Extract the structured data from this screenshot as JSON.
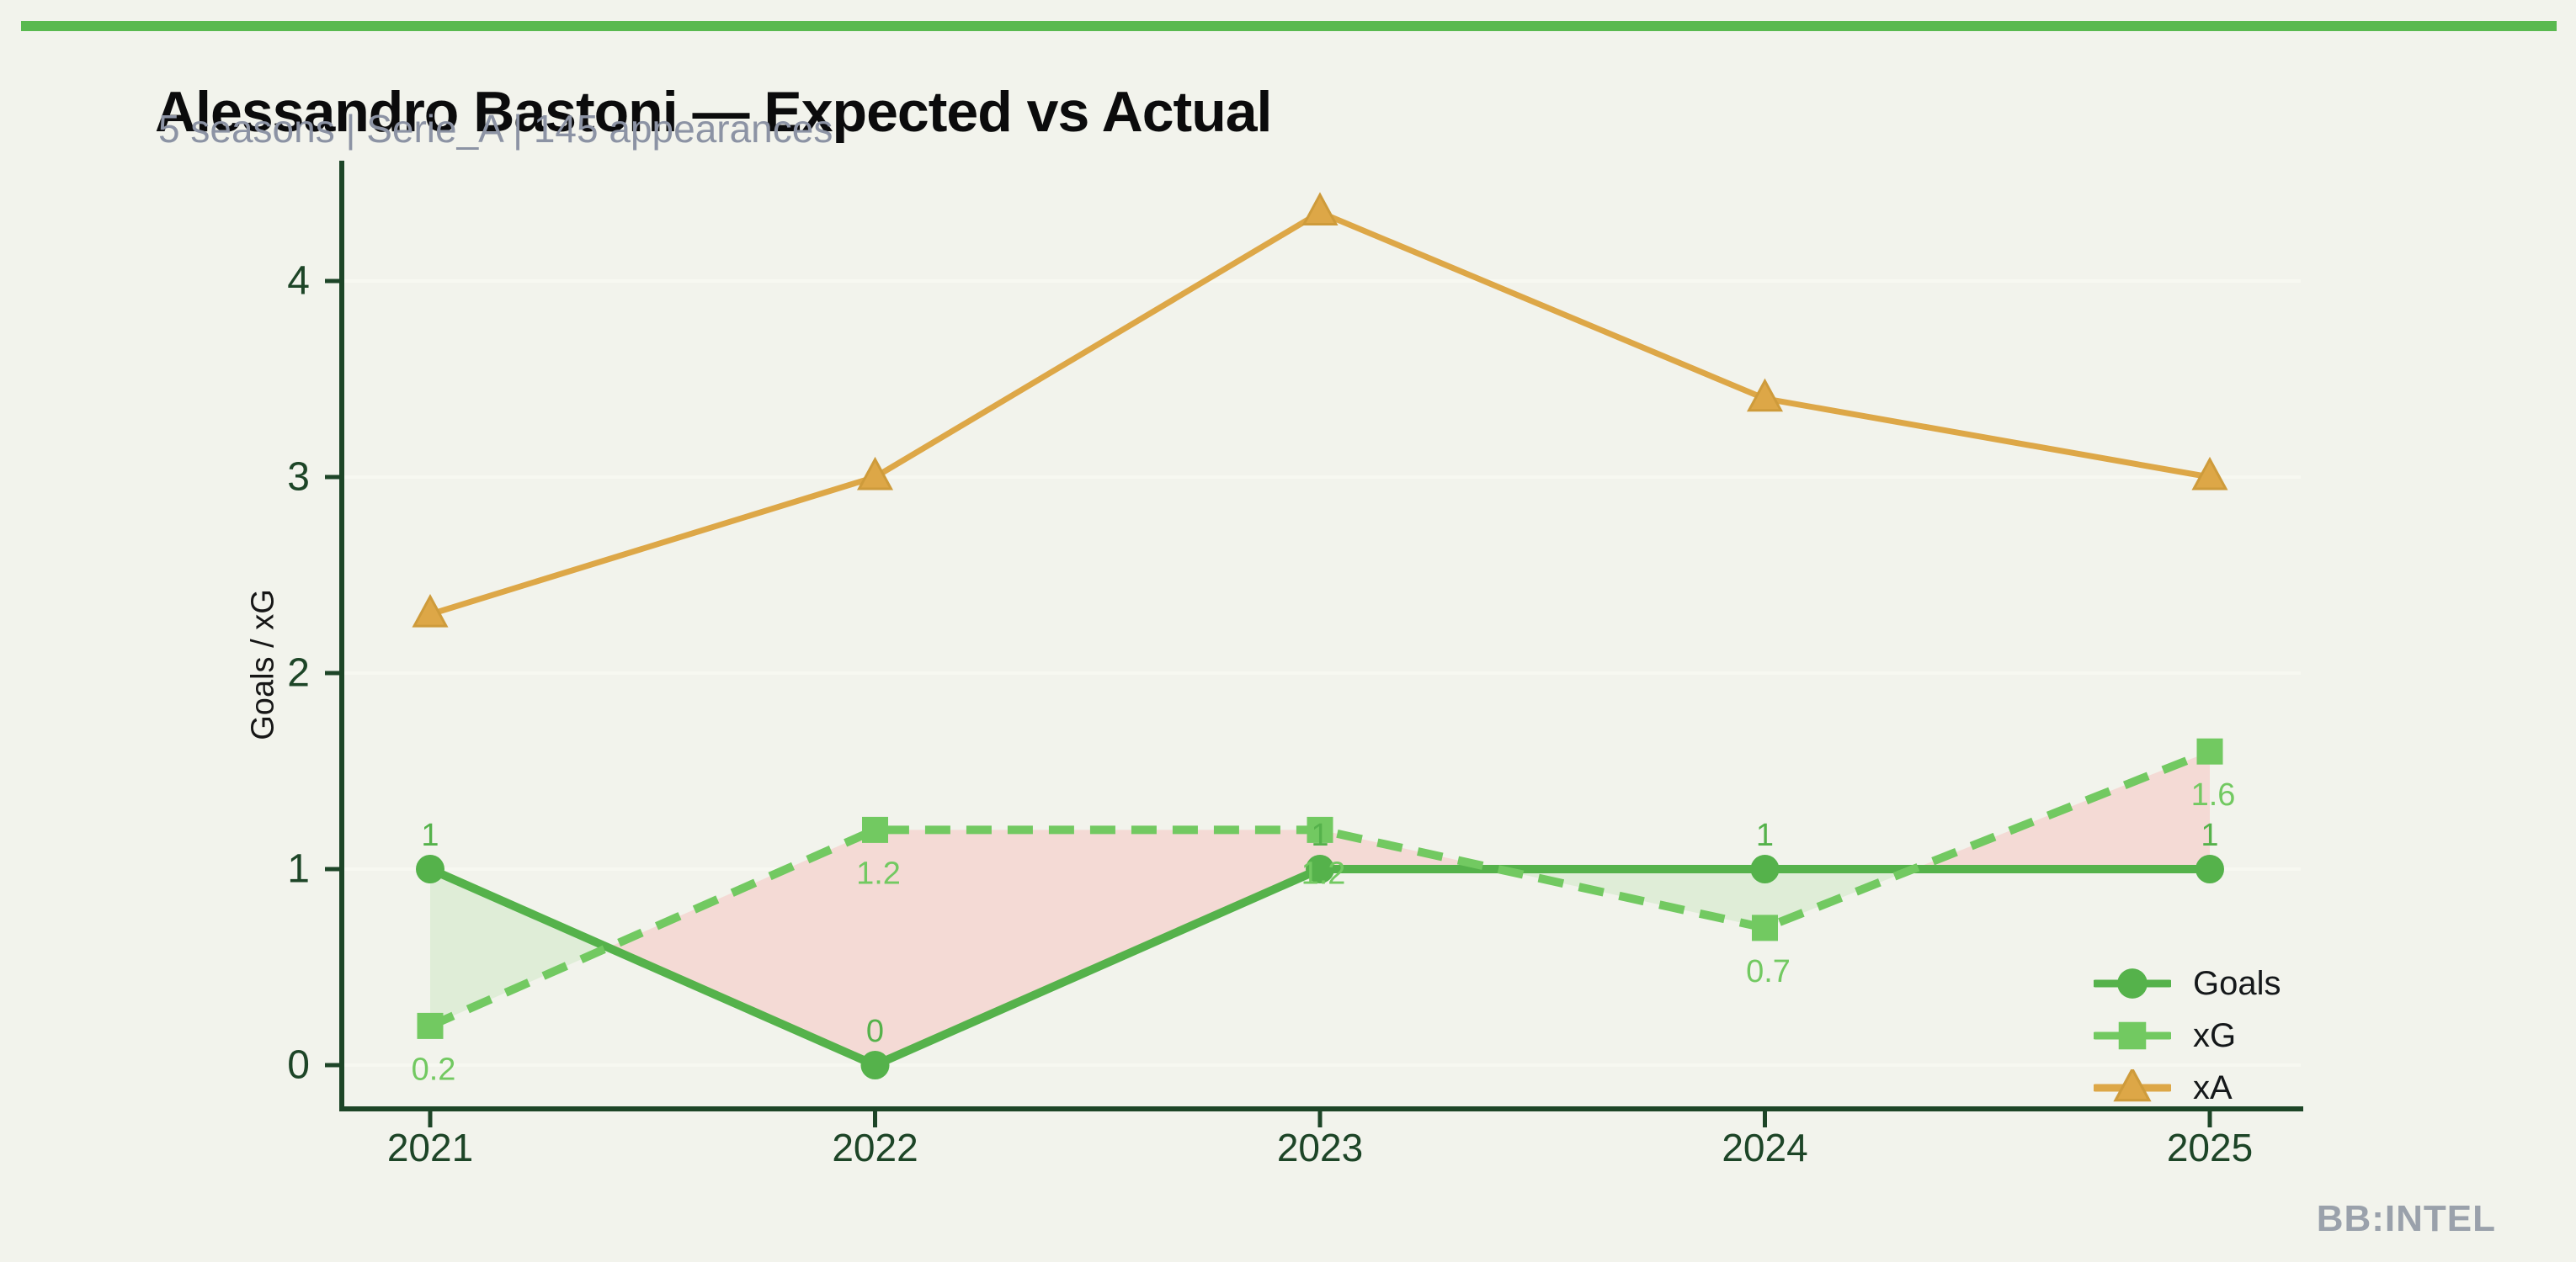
{
  "page": {
    "background": "#F2F3EC",
    "accent_bar_color": "#59B94F"
  },
  "header": {
    "title": "Alessandro Bastoni — Expected vs Actual",
    "subtitle": "5 seasons | Serie_A | 145 appearances",
    "subtitle_color": "#8C93A4"
  },
  "watermark": {
    "text": "BB:INTEL",
    "color": "#9AA1AB"
  },
  "chart_data": {
    "type": "line",
    "title": "Alessandro Bastoni — Expected vs Actual",
    "categories": [
      "2021",
      "2022",
      "2023",
      "2024",
      "2025"
    ],
    "x": [
      2021,
      2022,
      2023,
      2024,
      2025
    ],
    "series": [
      {
        "name": "Goals",
        "values": [
          1,
          0,
          1,
          1,
          1
        ],
        "labels": [
          "1",
          "0",
          "1",
          "1",
          "1"
        ],
        "color": "#55B24B",
        "marker": "circle",
        "style": "solid"
      },
      {
        "name": "xG",
        "values": [
          0.2,
          1.2,
          1.2,
          0.7,
          1.6
        ],
        "labels": [
          "0.2",
          "1.2",
          "1.2",
          "0.7",
          "1.6"
        ],
        "color": "#72C961",
        "marker": "square",
        "style": "dashed"
      },
      {
        "name": "xA",
        "values": [
          2.3,
          3.0,
          4.35,
          3.4,
          3.0
        ],
        "labels": [],
        "color": "#DDA747",
        "marker": "triangle",
        "style": "solid"
      }
    ],
    "fills": {
      "goals_above_xg": "#DFEDD7",
      "xg_above_goals": "#F4DAD5"
    },
    "xlabel": "",
    "ylabel": "Goals / xG",
    "ylim": [
      0,
      4.6
    ],
    "yticks": [
      0,
      1,
      2,
      3,
      4
    ],
    "grid": "horizontal-faint",
    "grid_color": "#F7F8F1",
    "axis_color": "#1D4527",
    "legend": {
      "position": "lower-right",
      "entries": [
        "Goals",
        "xG",
        "xA"
      ]
    }
  }
}
